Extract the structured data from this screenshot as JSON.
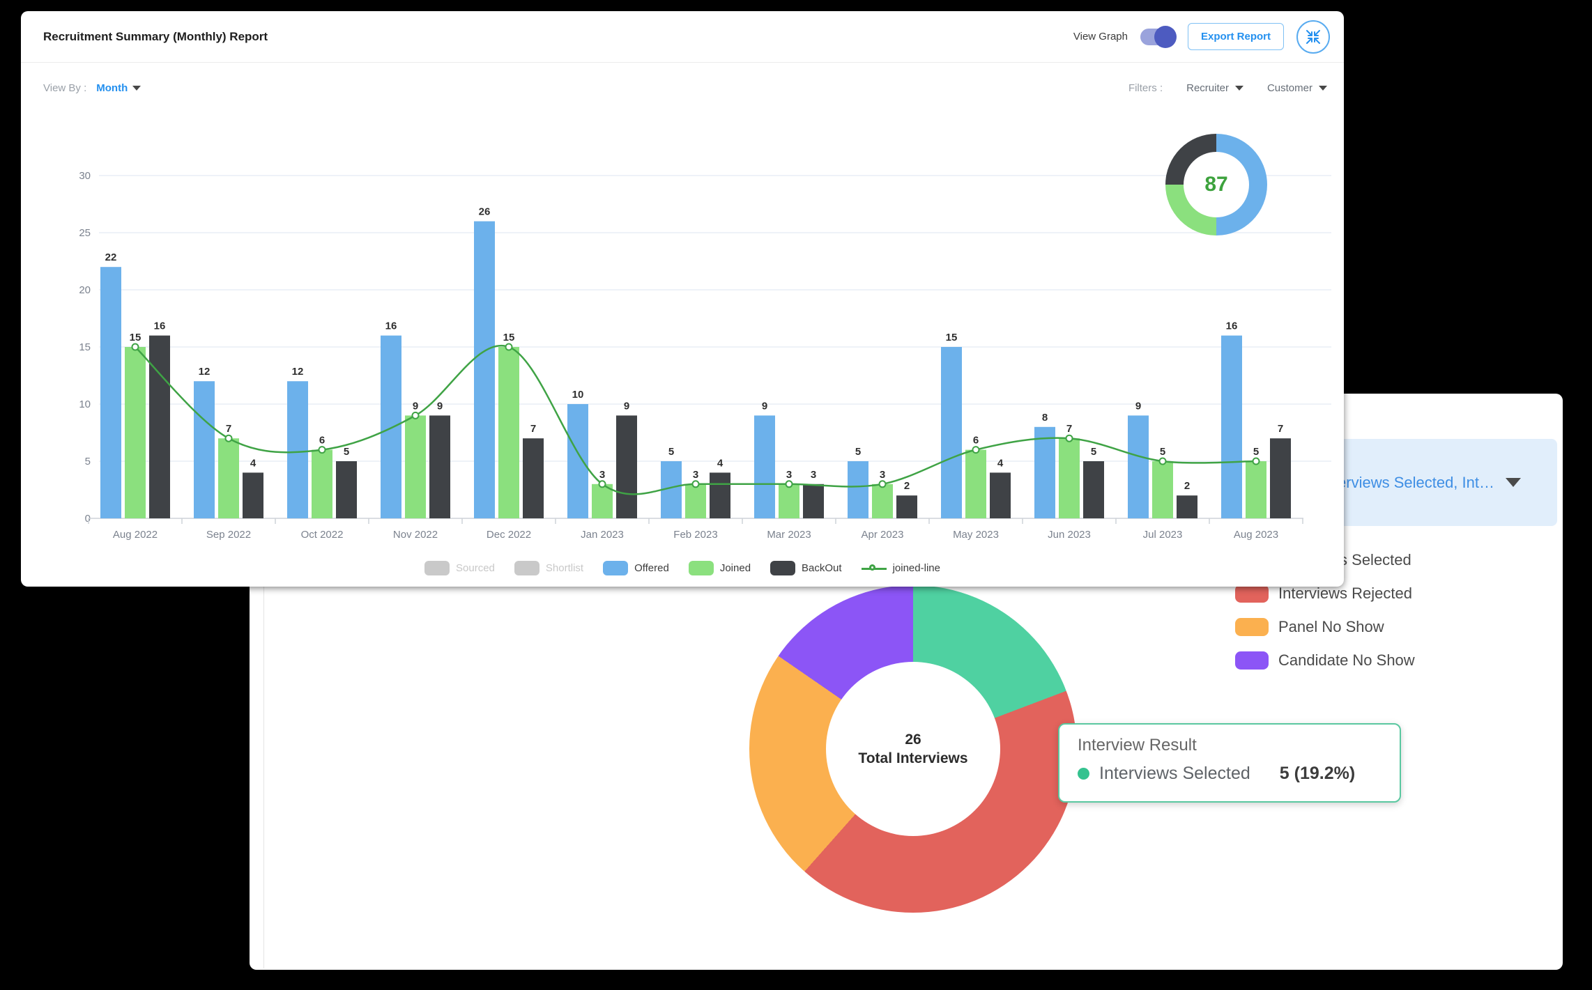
{
  "top_panel": {
    "title": "Recruitment Summary (Monthly) Report",
    "view_graph_label": "View Graph",
    "export_label": "Export Report",
    "view_by_label": "View By :",
    "view_by_value": "Month",
    "filters_label": "Filters :",
    "filter_recruiter": "Recruiter",
    "filter_customer": "Customer"
  },
  "bottom_panel": {
    "dropdown_value": "Interviews Selected, Int…",
    "tooltip": {
      "title": "Interview Result",
      "series_label": "Interviews Selected",
      "value": "5 (19.2%)"
    }
  },
  "chart_data": [
    {
      "type": "bar",
      "title": "Recruitment Summary (Monthly) Report",
      "categories": [
        "Aug 2022",
        "Sep 2022",
        "Oct 2022",
        "Nov 2022",
        "Dec 2022",
        "Jan 2023",
        "Feb 2023",
        "Mar 2023",
        "Apr 2023",
        "May 2023",
        "Jun 2023",
        "Jul 2023",
        "Aug 2023"
      ],
      "series": [
        {
          "name": "Offered",
          "color": "#6CB1EB",
          "values": [
            22,
            12,
            12,
            16,
            26,
            10,
            5,
            9,
            5,
            15,
            8,
            9,
            16
          ]
        },
        {
          "name": "Joined",
          "color": "#8BE07E",
          "values": [
            15,
            7,
            6,
            9,
            15,
            3,
            3,
            3,
            3,
            6,
            7,
            5,
            5
          ]
        },
        {
          "name": "BackOut",
          "color": "#3F4246",
          "values": [
            16,
            4,
            5,
            9,
            7,
            9,
            4,
            3,
            2,
            4,
            5,
            2,
            7
          ]
        }
      ],
      "line_series": {
        "name": "joined-line",
        "color": "#3FA345",
        "values": [
          15,
          7,
          6,
          9,
          15,
          3,
          3,
          3,
          3,
          6,
          7,
          5,
          5
        ]
      },
      "xlabel": "",
      "ylabel": "",
      "ylim": [
        0,
        30
      ],
      "yticks": [
        0,
        5,
        10,
        15,
        20,
        25,
        30
      ],
      "grid": true,
      "legend_position": "bottom",
      "legend": [
        {
          "label": "Sourced",
          "color": "#C9C9C9",
          "disabled": true,
          "type": "swatch"
        },
        {
          "label": "Shortlist",
          "color": "#C9C9C9",
          "disabled": true,
          "type": "swatch"
        },
        {
          "label": "Offered",
          "color": "#6CB1EB",
          "disabled": false,
          "type": "swatch"
        },
        {
          "label": "Joined",
          "color": "#8BE07E",
          "disabled": false,
          "type": "swatch"
        },
        {
          "label": "BackOut",
          "color": "#3F4246",
          "disabled": false,
          "type": "swatch"
        },
        {
          "label": "joined-line",
          "color": "#3FA345",
          "disabled": false,
          "type": "line"
        }
      ]
    },
    {
      "type": "pie",
      "title": "Interview Result",
      "total": 26,
      "center_value": "26",
      "center_label": "Total Interviews",
      "slices": [
        {
          "label": "Interviews Selected",
          "value": 5,
          "pct": "19.2%",
          "color": "#4FD1A1"
        },
        {
          "label": "Interviews Rejected",
          "value": 11,
          "pct": "42.3%",
          "color": "#E2635C"
        },
        {
          "label": "Panel No Show",
          "value": 6,
          "pct": "23.1%",
          "color": "#FBB04F"
        },
        {
          "label": "Candidate No Show",
          "value": 4,
          "pct": "15.4%",
          "color": "#8C55F6"
        }
      ]
    },
    {
      "type": "pie",
      "center_value": "87",
      "slices": [
        {
          "label": "",
          "value": 50,
          "color": "#6CB1EB"
        },
        {
          "label": "",
          "value": 25,
          "color": "#8BE07E"
        },
        {
          "label": "",
          "value": 25,
          "color": "#3F4246"
        }
      ]
    }
  ]
}
